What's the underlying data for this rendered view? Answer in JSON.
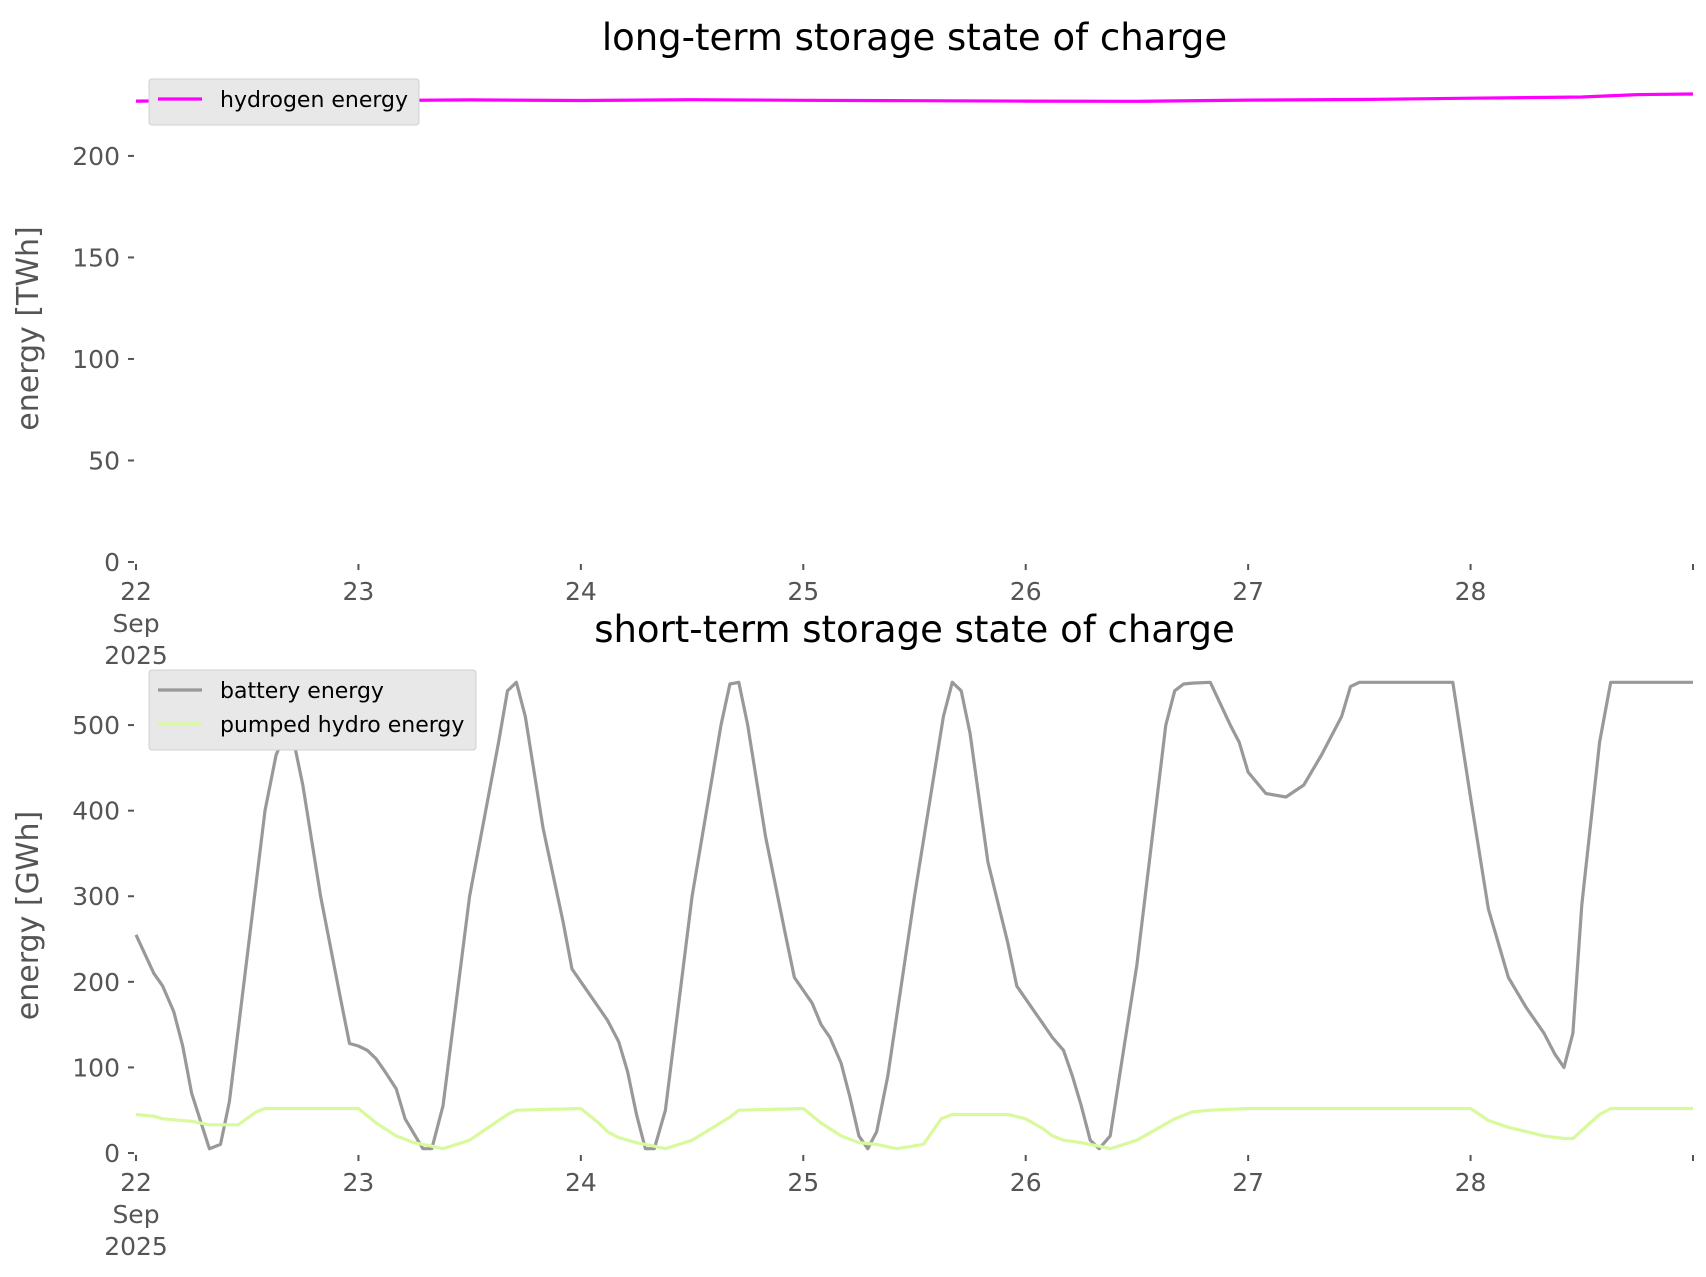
{
  "chart_data": [
    {
      "type": "line",
      "title": "long-term storage state of charge",
      "xlabel": "",
      "ylabel": "energy [TWh]",
      "x_tick_labels": [
        [
          "22",
          "Sep",
          "2025"
        ],
        [
          "23"
        ],
        [
          "24"
        ],
        [
          "25"
        ],
        [
          "26"
        ],
        [
          "27"
        ],
        [
          "28"
        ]
      ],
      "x_tick_values": [
        0,
        1,
        2,
        3,
        4,
        5,
        6
      ],
      "xlim": [
        0,
        7
      ],
      "x_unit": "days since 22 Sep 2025",
      "y_ticks": [
        0,
        50,
        100,
        150,
        200
      ],
      "ylim": [
        0,
        230
      ],
      "grid": false,
      "legend": "top-left",
      "series": [
        {
          "name": "hydrogen energy",
          "color": "#ff00ff",
          "x": [
            0,
            0.5,
            1,
            1.5,
            2,
            2.5,
            3,
            3.5,
            4,
            4.5,
            5,
            5.5,
            6,
            6.5,
            6.75,
            7
          ],
          "values": [
            227,
            227.5,
            227.2,
            227.6,
            227.3,
            227.7,
            227.4,
            227.2,
            227.0,
            226.9,
            227.5,
            227.8,
            228.4,
            229.0,
            230.2,
            230.5
          ]
        }
      ]
    },
    {
      "type": "line",
      "title": "short-term storage state of charge",
      "xlabel": "",
      "ylabel": "energy [GWh]",
      "x_tick_labels": [
        [
          "22",
          "Sep",
          "2025"
        ],
        [
          "23"
        ],
        [
          "24"
        ],
        [
          "25"
        ],
        [
          "26"
        ],
        [
          "27"
        ],
        [
          "28"
        ]
      ],
      "x_tick_values": [
        0,
        1,
        2,
        3,
        4,
        5,
        6
      ],
      "xlim": [
        0,
        7
      ],
      "y_ticks": [
        0,
        100,
        200,
        300,
        400,
        500
      ],
      "ylim": [
        0,
        555
      ],
      "grid": false,
      "legend": "top-left",
      "series": [
        {
          "name": "battery energy",
          "color": "#999999",
          "x": [
            0,
            0.08,
            0.12,
            0.17,
            0.21,
            0.25,
            0.33,
            0.38,
            0.42,
            0.5,
            0.58,
            0.63,
            0.67,
            0.71,
            0.75,
            0.83,
            0.92,
            0.96,
            1.0,
            1.04,
            1.08,
            1.12,
            1.17,
            1.21,
            1.29,
            1.33,
            1.38,
            1.5,
            1.63,
            1.67,
            1.71,
            1.75,
            1.83,
            1.92,
            1.96,
            2.0,
            2.04,
            2.08,
            2.12,
            2.17,
            2.21,
            2.25,
            2.29,
            2.33,
            2.38,
            2.5,
            2.63,
            2.67,
            2.71,
            2.75,
            2.83,
            2.92,
            2.96,
            3.0,
            3.04,
            3.08,
            3.12,
            3.17,
            3.21,
            3.25,
            3.29,
            3.33,
            3.38,
            3.5,
            3.63,
            3.67,
            3.71,
            3.75,
            3.83,
            3.92,
            3.96,
            4.0,
            4.04,
            4.08,
            4.12,
            4.17,
            4.21,
            4.25,
            4.29,
            4.33,
            4.38,
            4.5,
            4.63,
            4.67,
            4.71,
            4.75,
            4.83,
            4.92,
            4.96,
            5.0,
            5.08,
            5.17,
            5.25,
            5.33,
            5.42,
            5.46,
            5.5,
            5.54,
            5.58,
            5.63,
            5.67,
            5.92,
            6.0,
            6.08,
            6.17,
            6.25,
            6.33,
            6.38,
            6.42,
            6.46,
            6.5,
            6.58,
            6.63,
            6.67,
            6.75,
            6.83,
            7.0
          ],
          "values": [
            255,
            210,
            195,
            165,
            125,
            70,
            5,
            10,
            60,
            230,
            400,
            465,
            490,
            480,
            430,
            300,
            180,
            128,
            125,
            120,
            110,
            95,
            75,
            40,
            5,
            5,
            55,
            300,
            480,
            540,
            550,
            510,
            380,
            270,
            215,
            200,
            185,
            170,
            155,
            130,
            95,
            45,
            5,
            5,
            50,
            300,
            500,
            548,
            550,
            500,
            370,
            255,
            205,
            190,
            175,
            150,
            135,
            105,
            65,
            20,
            5,
            25,
            90,
            300,
            510,
            550,
            540,
            490,
            340,
            245,
            195,
            180,
            165,
            150,
            135,
            120,
            90,
            55,
            15,
            5,
            20,
            220,
            500,
            540,
            548,
            549,
            550,
            500,
            480,
            445,
            420,
            416,
            430,
            465,
            510,
            545,
            550,
            550,
            550,
            550,
            550,
            550,
            415,
            285,
            205,
            170,
            140,
            115,
            100,
            140,
            290,
            480,
            550,
            550,
            550,
            550,
            550
          ]
        },
        {
          "name": "pumped hydro energy",
          "color": "#d9f99d",
          "x": [
            0,
            0.08,
            0.12,
            0.25,
            0.33,
            0.46,
            0.54,
            0.58,
            1.0,
            1.08,
            1.17,
            1.25,
            1.33,
            1.38,
            1.5,
            1.67,
            1.71,
            2.0,
            2.08,
            2.12,
            2.17,
            2.25,
            2.33,
            2.38,
            2.5,
            2.67,
            2.71,
            3.0,
            3.08,
            3.17,
            3.25,
            3.33,
            3.42,
            3.54,
            3.62,
            3.67,
            3.92,
            4.0,
            4.08,
            4.12,
            4.17,
            4.25,
            4.33,
            4.38,
            4.5,
            4.67,
            4.75,
            4.83,
            5.0,
            5.83,
            6.0,
            6.08,
            6.17,
            6.25,
            6.33,
            6.42,
            6.46,
            6.58,
            6.63,
            7.0
          ],
          "values": [
            45,
            43,
            40,
            37,
            33,
            33,
            48,
            52,
            52,
            35,
            20,
            12,
            8,
            5,
            15,
            45,
            50,
            52,
            35,
            25,
            18,
            12,
            8,
            5,
            15,
            42,
            50,
            52,
            35,
            20,
            12,
            10,
            5,
            10,
            40,
            45,
            45,
            40,
            28,
            20,
            15,
            12,
            8,
            5,
            15,
            40,
            48,
            50,
            52,
            52,
            52,
            38,
            30,
            25,
            20,
            17,
            17,
            45,
            52,
            52
          ]
        }
      ]
    }
  ]
}
